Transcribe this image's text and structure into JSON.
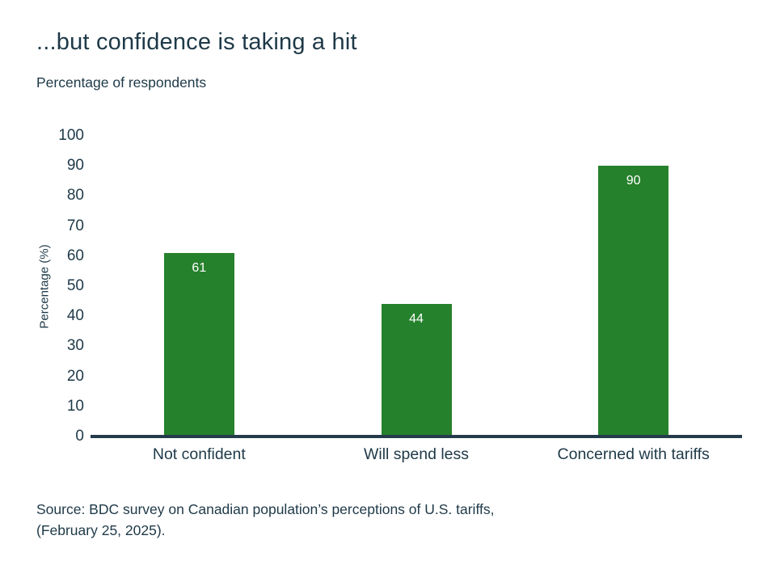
{
  "chart_data": {
    "type": "bar",
    "title": "...but confidence is taking a hit",
    "subtitle": "Percentage of respondents",
    "categories": [
      "Not confident",
      "Will spend less",
      "Concerned with tariffs"
    ],
    "values": [
      61,
      44,
      90
    ],
    "bar_labels": [
      "61",
      "44",
      "90"
    ],
    "xlabel": "",
    "ylabel": "Percentage (%)",
    "ylim": [
      0,
      100
    ],
    "yticks": [
      0,
      10,
      20,
      30,
      40,
      50,
      60,
      70,
      80,
      90,
      100
    ],
    "grid": false,
    "legend": "none",
    "bar_color": "#26812c",
    "bar_value_label_color": "#ffffff",
    "axis_color": "#253b4b",
    "text_color": "#1e3948"
  },
  "source": {
    "line1": "Source: BDC survey on Canadian population’s perceptions of U.S. tariffs,",
    "line2": "(February 25, 2025)."
  }
}
